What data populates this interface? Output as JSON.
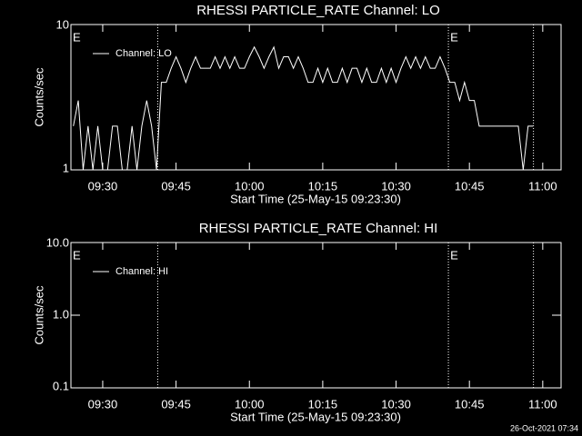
{
  "chart_data": [
    {
      "type": "line",
      "title": "RHESSI PARTICLE_RATE Channel: LO",
      "xlabel": "Start Time (25-May-15 09:23:30)",
      "ylabel": "Counts/sec",
      "x": [
        564,
        565,
        566,
        567,
        568,
        569,
        570,
        571,
        572,
        573,
        574,
        575,
        576,
        577,
        578,
        579,
        580,
        581,
        582,
        583,
        584,
        585,
        586,
        587,
        588,
        589,
        590,
        591,
        592,
        593,
        594,
        595,
        596,
        597,
        598,
        599,
        600,
        601,
        602,
        603,
        604,
        605,
        606,
        607,
        608,
        609,
        610,
        611,
        612,
        613,
        614,
        615,
        616,
        617,
        618,
        619,
        620,
        621,
        622,
        623,
        624,
        625,
        626,
        627,
        628,
        629,
        630,
        631,
        632,
        633,
        634,
        635,
        636,
        637,
        638,
        639,
        640,
        641,
        642,
        643,
        644,
        645,
        646,
        647,
        648,
        649,
        650,
        651,
        652,
        653,
        654,
        655,
        656,
        657,
        658
      ],
      "series": [
        {
          "name": "Channel: LO",
          "color": "#ffffff",
          "values": [
            2,
            3,
            1,
            2,
            1,
            2,
            1,
            1,
            2,
            2,
            1,
            1,
            2,
            1,
            2,
            3,
            2,
            1,
            4,
            4,
            5,
            6,
            5,
            4,
            5,
            6,
            5,
            5,
            5,
            6,
            5,
            6,
            5,
            6,
            5,
            5,
            6,
            7,
            6,
            5,
            6,
            7,
            5,
            6,
            6,
            5,
            6,
            5,
            4,
            4,
            5,
            4,
            5,
            4,
            4,
            5,
            4,
            5,
            5,
            4,
            5,
            4,
            4,
            5,
            4,
            5,
            4,
            5,
            6,
            5,
            6,
            5,
            6,
            5,
            5,
            6,
            5,
            4,
            4,
            3,
            4,
            3,
            3,
            2,
            2,
            2,
            2,
            2,
            2,
            2,
            2,
            2,
            1,
            2,
            2
          ]
        }
      ],
      "xlim": [
        563.5,
        663.75
      ],
      "ylim": [
        1,
        10
      ],
      "log_y": true,
      "xticks": [
        {
          "value": 570,
          "label": "09:30"
        },
        {
          "value": 585,
          "label": "09:45"
        },
        {
          "value": 600,
          "label": "10:00"
        },
        {
          "value": 615,
          "label": "10:15"
        },
        {
          "value": 630,
          "label": "10:30"
        },
        {
          "value": 645,
          "label": "10:45"
        },
        {
          "value": 660,
          "label": "11:00"
        }
      ],
      "yticks": [
        1,
        10
      ],
      "vlines": [
        581.25,
        640.7,
        658.1
      ],
      "annotations": [
        {
          "text": "E",
          "x": 563.5
        },
        {
          "text": "E",
          "x": 640.7
        }
      ]
    },
    {
      "type": "line",
      "title": "RHESSI PARTICLE_RATE Channel: HI",
      "xlabel": "Start Time (25-May-15 09:23:30)",
      "ylabel": "Counts/sec",
      "x": [],
      "series": [
        {
          "name": "Channel: HI",
          "color": "#ffffff",
          "values": []
        }
      ],
      "xlim": [
        563.5,
        663.75
      ],
      "ylim": [
        0.1,
        10
      ],
      "log_y": true,
      "xticks": [
        {
          "value": 570,
          "label": "09:30"
        },
        {
          "value": 585,
          "label": "09:45"
        },
        {
          "value": 600,
          "label": "10:00"
        },
        {
          "value": 615,
          "label": "10:15"
        },
        {
          "value": 630,
          "label": "10:30"
        },
        {
          "value": 645,
          "label": "10:45"
        },
        {
          "value": 660,
          "label": "11:00"
        }
      ],
      "yticks": [
        {
          "value": 0.1,
          "label": "0.1"
        },
        {
          "value": 1,
          "label": "1.0"
        },
        {
          "value": 10,
          "label": "10.0"
        }
      ],
      "vlines": [
        581.25,
        640.7,
        658.1
      ],
      "annotations": [
        {
          "text": "E",
          "x": 563.5
        },
        {
          "text": "E",
          "x": 640.7
        }
      ]
    }
  ],
  "footer": "26-Oct-2021 07:34"
}
